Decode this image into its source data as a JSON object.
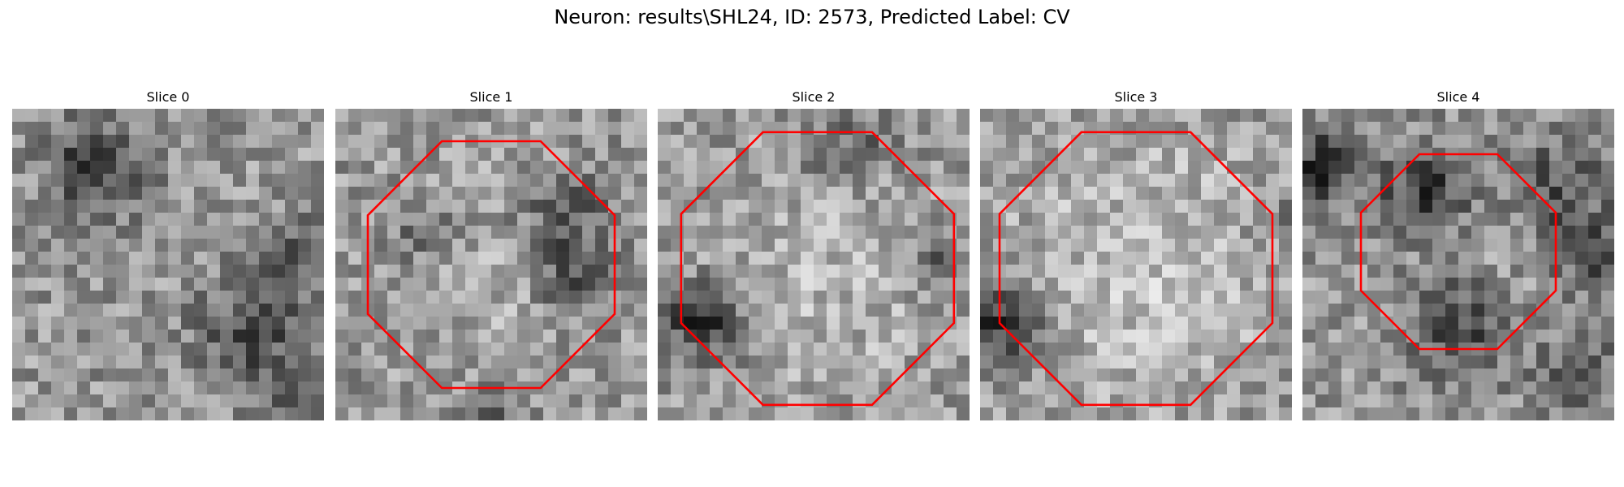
{
  "figure": {
    "title": "Neuron: results\\SHL24, ID: 2573, Predicted Label: CV"
  },
  "slices": [
    {
      "title": "Slice 0",
      "has_contour": false
    },
    {
      "title": "Slice 1",
      "has_contour": true
    },
    {
      "title": "Slice 2",
      "has_contour": true
    },
    {
      "title": "Slice 3",
      "has_contour": true
    },
    {
      "title": "Slice 4",
      "has_contour": true
    }
  ],
  "colors": {
    "contour": "#ff0000",
    "background": "#ffffff",
    "text": "#000000"
  }
}
